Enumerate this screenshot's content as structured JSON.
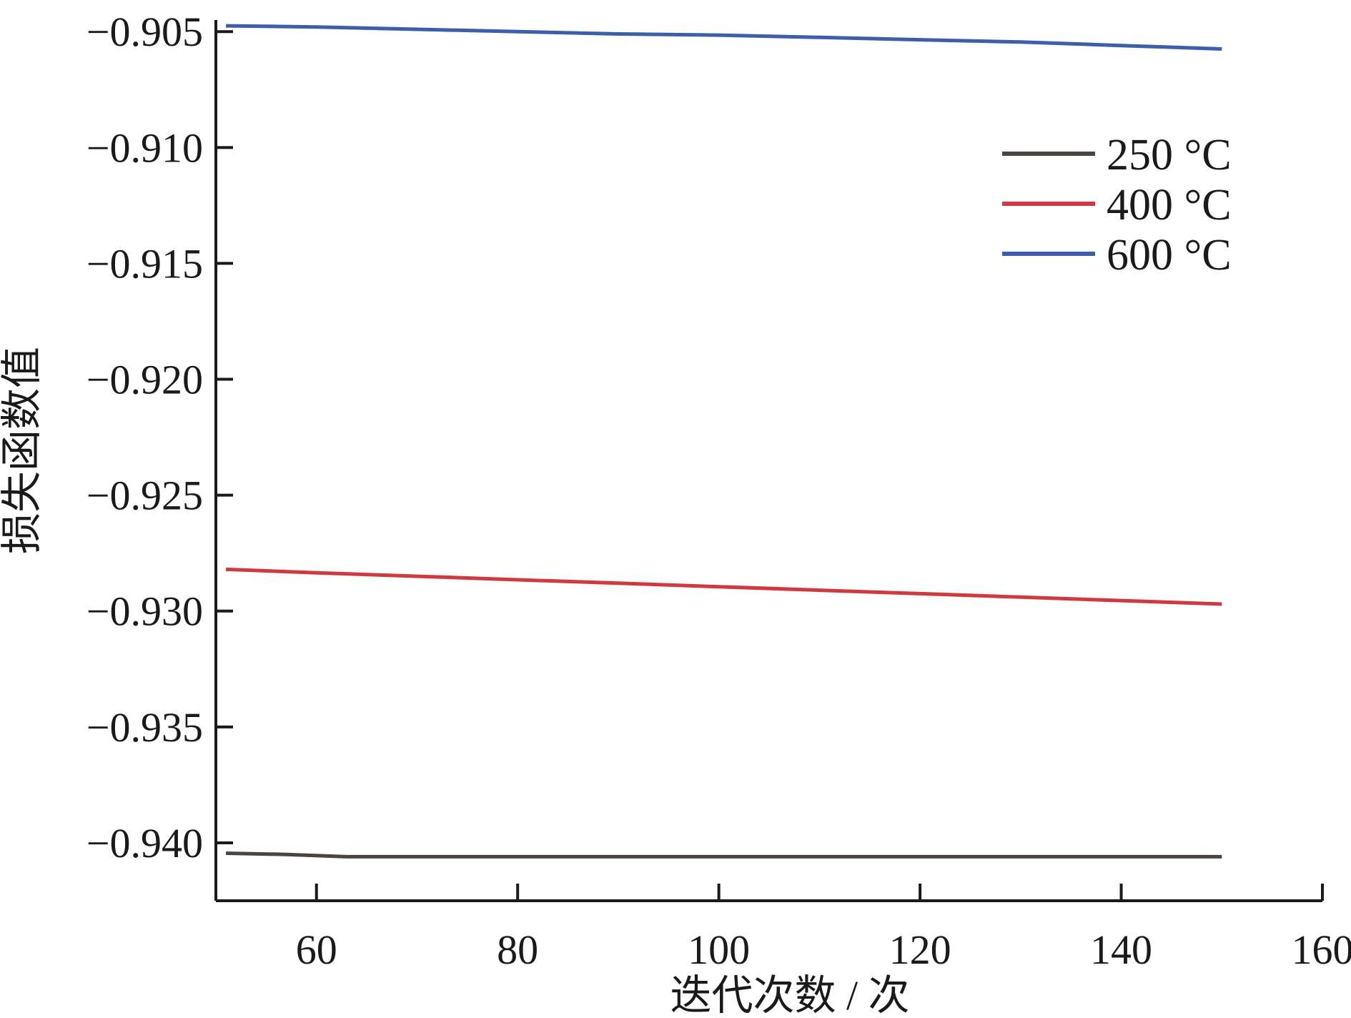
{
  "chart_data": {
    "type": "line",
    "xlabel": "迭代次数 / 次",
    "ylabel": "损失函数值",
    "xlim": [
      50,
      160
    ],
    "ylim": [
      -0.9425,
      -0.9045
    ],
    "xticks": [
      60,
      80,
      100,
      120,
      140,
      160
    ],
    "xtick_labels": [
      "60",
      "80",
      "100",
      "120",
      "140",
      "160"
    ],
    "yticks": [
      -0.905,
      -0.91,
      -0.915,
      -0.92,
      -0.925,
      -0.93,
      -0.935,
      -0.94
    ],
    "ytick_labels": [
      "−0.905",
      "−0.910",
      "−0.915",
      "−0.920",
      "−0.925",
      "−0.930",
      "−0.935",
      "−0.940"
    ],
    "grid": false,
    "legend_position": "top-right",
    "series": [
      {
        "name": "250 °C",
        "color": "#4a4541",
        "x": [
          51,
          57,
          63,
          80,
          100,
          120,
          140,
          150
        ],
        "y": [
          -0.94045,
          -0.9405,
          -0.9406,
          -0.9406,
          -0.9406,
          -0.9406,
          -0.9406,
          -0.9406
        ]
      },
      {
        "name": "400 °C",
        "color": "#d0393e",
        "x": [
          51,
          60,
          70,
          80,
          90,
          100,
          110,
          120,
          130,
          140,
          150
        ],
        "y": [
          -0.9282,
          -0.92835,
          -0.9285,
          -0.92865,
          -0.9288,
          -0.92895,
          -0.9291,
          -0.92925,
          -0.9294,
          -0.92955,
          -0.9297
        ]
      },
      {
        "name": "600 °C",
        "color": "#3d5ea8",
        "x": [
          51,
          60,
          70,
          80,
          90,
          100,
          110,
          120,
          130,
          140,
          150
        ],
        "y": [
          -0.90475,
          -0.9048,
          -0.9049,
          -0.905,
          -0.9051,
          -0.90515,
          -0.90525,
          -0.90535,
          -0.90545,
          -0.9056,
          -0.90575
        ]
      }
    ]
  }
}
